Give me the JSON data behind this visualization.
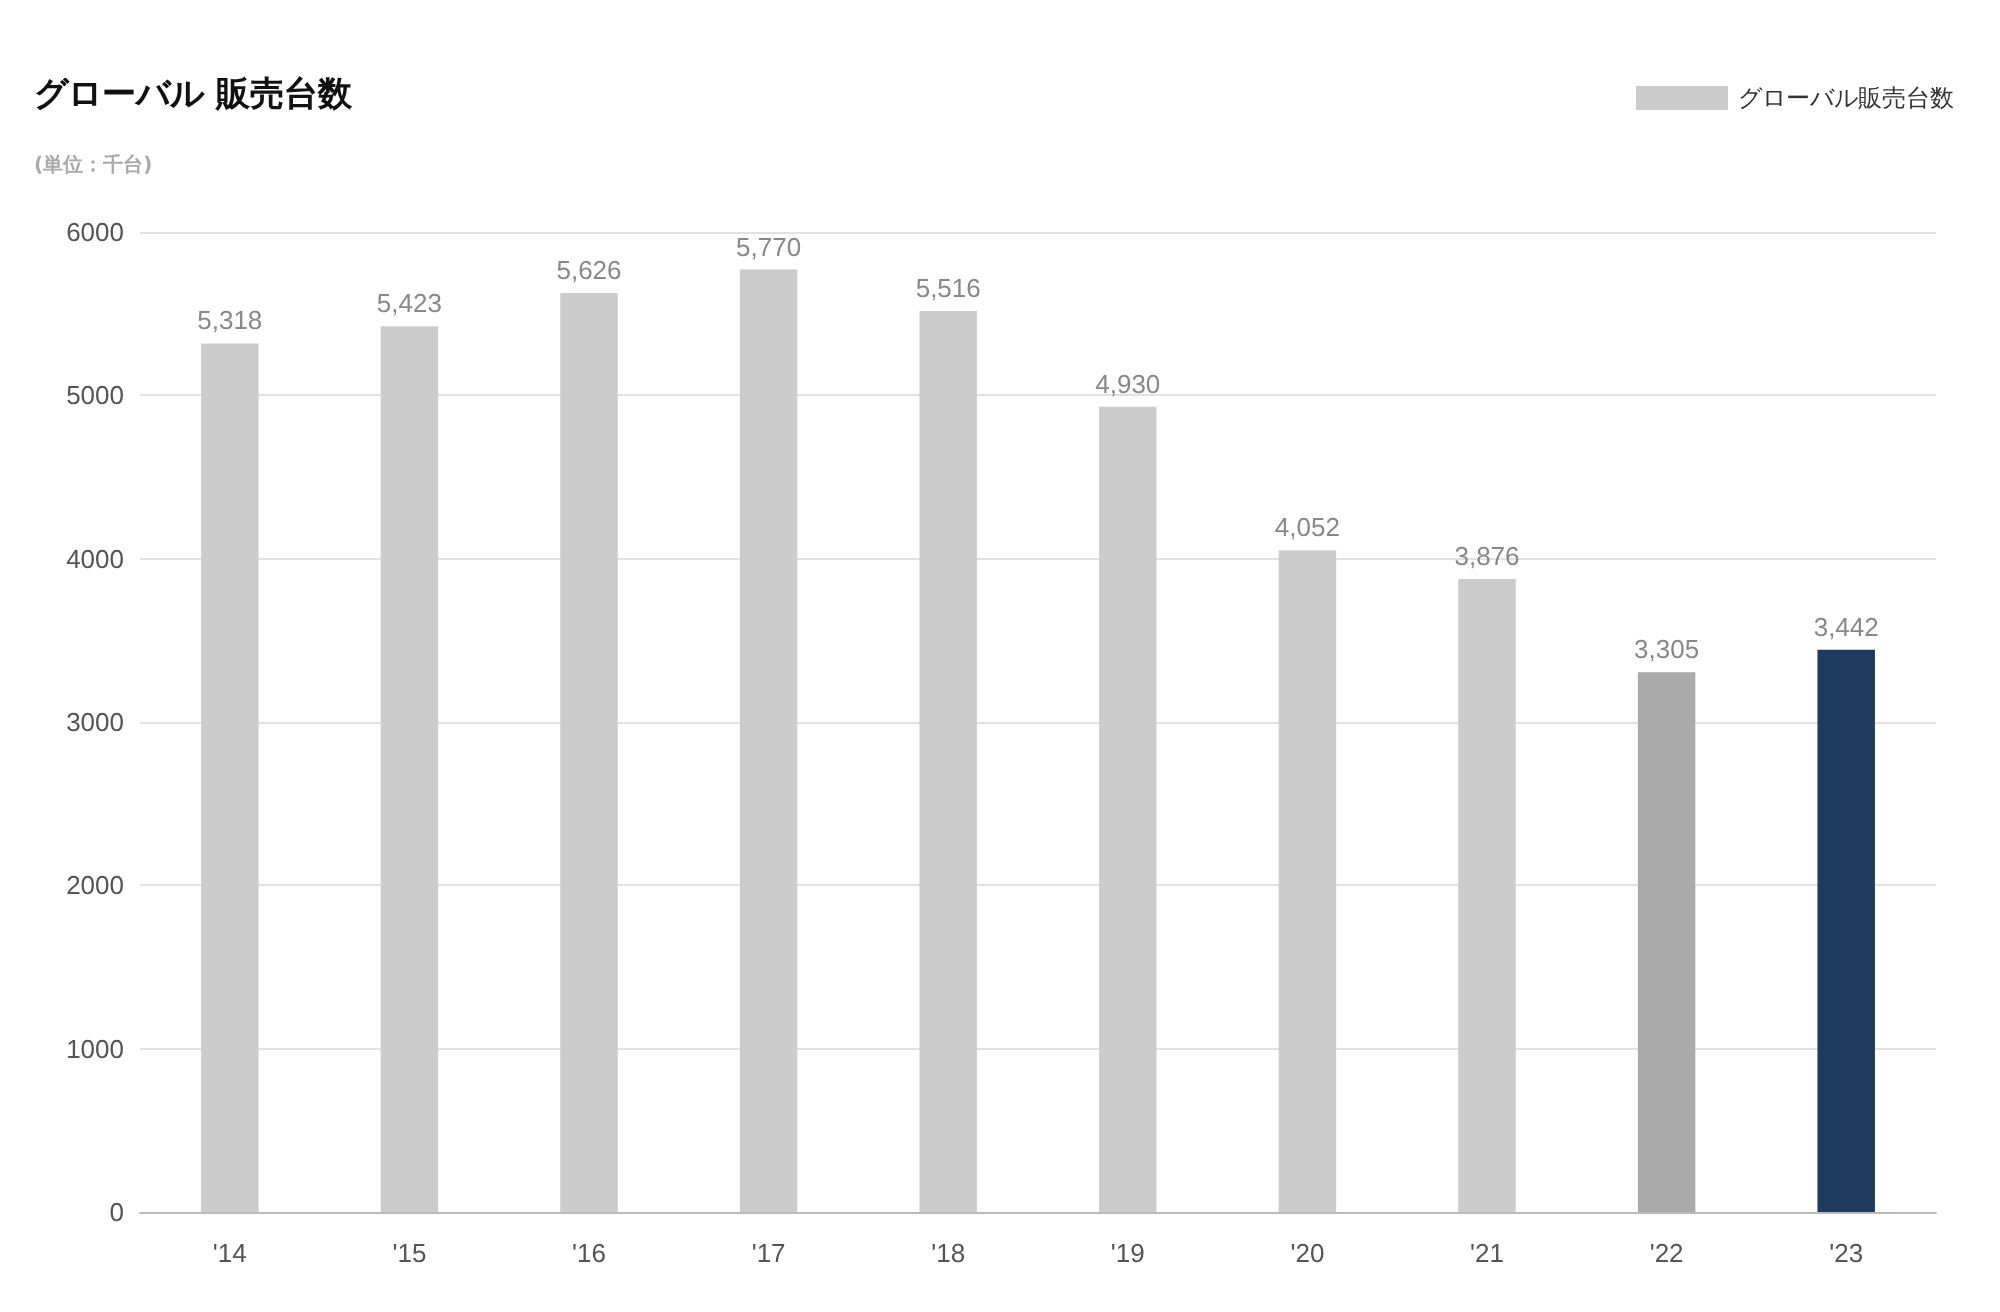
{
  "chart_data": {
    "type": "bar",
    "title": "グローバル 販売台数",
    "subtitle": "(単位：千台)",
    "categories": [
      "'14",
      "'15",
      "'16",
      "'17",
      "'18",
      "'19",
      "'20",
      "'21",
      "'22",
      "'23"
    ],
    "series": [
      {
        "name": "グローバル販売台数",
        "color": "#cccccc",
        "colors": [
          "#cccccc",
          "#cccccc",
          "#cccccc",
          "#cccccc",
          "#cccccc",
          "#cccccc",
          "#cccccc",
          "#cccccc",
          "#aaaaaa",
          "#1e3a5f"
        ],
        "values": [
          5318,
          5423,
          5626,
          5770,
          5516,
          4930,
          4052,
          3876,
          3305,
          3442
        ],
        "value_labels": [
          "5,318",
          "5,423",
          "5,626",
          "5,770",
          "5,516",
          "4,930",
          "4,052",
          "3,876",
          "3,305",
          "3,442"
        ]
      }
    ],
    "ylim": [
      0,
      6000
    ],
    "yticks": [
      0,
      1000,
      2000,
      3000,
      4000,
      5000,
      6000
    ],
    "grid": "y",
    "legend": "top right"
  }
}
